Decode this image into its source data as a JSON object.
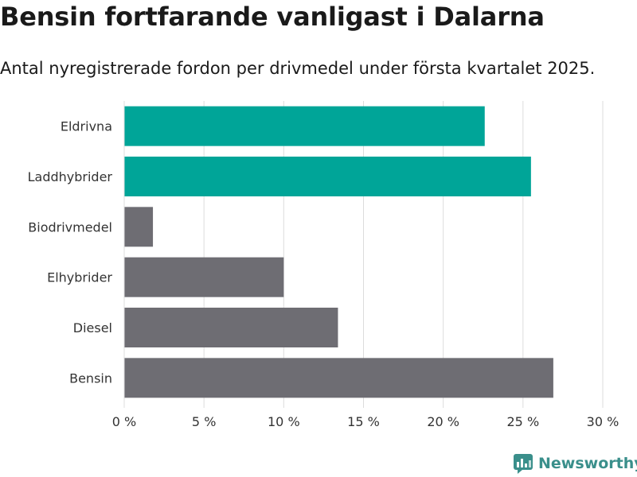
{
  "colors": {
    "highlight": "#00a598",
    "base": "#6e6d73",
    "grid": "#dcdcdc",
    "brand": "#3a8f8b"
  },
  "brand": {
    "name": "Newsworthy",
    "icon": "newsworthy-logo-icon"
  },
  "chart_data": {
    "type": "bar",
    "orientation": "horizontal",
    "title": "Bensin fortfarande vanligast i Dalarna",
    "subtitle": "Antal nyregistrerade fordon per drivmedel under första kvartalet 2025.",
    "categories": [
      "Eldrivna",
      "Laddhybrider",
      "Biodrivmedel",
      "Elhybrider",
      "Diesel",
      "Bensin"
    ],
    "values": [
      22.6,
      25.5,
      1.8,
      10.0,
      13.4,
      26.9
    ],
    "highlighted": [
      true,
      true,
      false,
      false,
      false,
      false
    ],
    "xlim": [
      0,
      30
    ],
    "xticks": [
      0,
      5,
      10,
      15,
      20,
      25,
      30
    ],
    "xtick_labels": [
      "0 %",
      "5 %",
      "10 %",
      "15 %",
      "20 %",
      "25 %",
      "30 %"
    ],
    "grid": true
  }
}
